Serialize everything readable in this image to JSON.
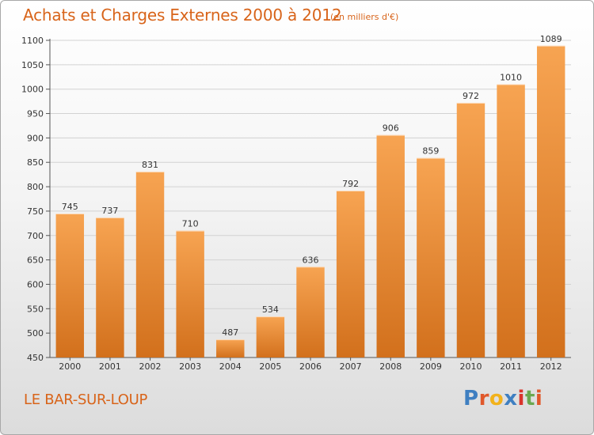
{
  "header": {
    "title": "Achats et Charges Externes 2000 à 2012",
    "unit": "(en milliers d'€)"
  },
  "footer": {
    "location": "LE BAR-SUR-LOUP",
    "logo_text": "Proxiti"
  },
  "colors": {
    "accent": "#d8641a",
    "bar_light": "#f7a452",
    "bar_dark": "#d2701c",
    "logo_letters": [
      "#3f7fc1",
      "#e0582b",
      "#f2b21b",
      "#3f7fc1",
      "#d9342b",
      "#6aa84f",
      "#e0582b"
    ]
  },
  "chart_data": {
    "type": "bar",
    "title": "Achats et Charges Externes 2000 à 2012",
    "subtitle": "(en milliers d'€)",
    "categories": [
      "2000",
      "2001",
      "2002",
      "2003",
      "2004",
      "2005",
      "2006",
      "2007",
      "2008",
      "2009",
      "2010",
      "2011",
      "2012"
    ],
    "values": [
      745,
      737,
      831,
      710,
      487,
      534,
      636,
      792,
      906,
      859,
      972,
      1010,
      1089
    ],
    "ylim": [
      450,
      1100
    ],
    "yticks": [
      450,
      500,
      550,
      600,
      650,
      700,
      750,
      800,
      850,
      900,
      950,
      1000,
      1050,
      1100
    ],
    "grid": true,
    "data_labels": true,
    "legend": "none"
  }
}
